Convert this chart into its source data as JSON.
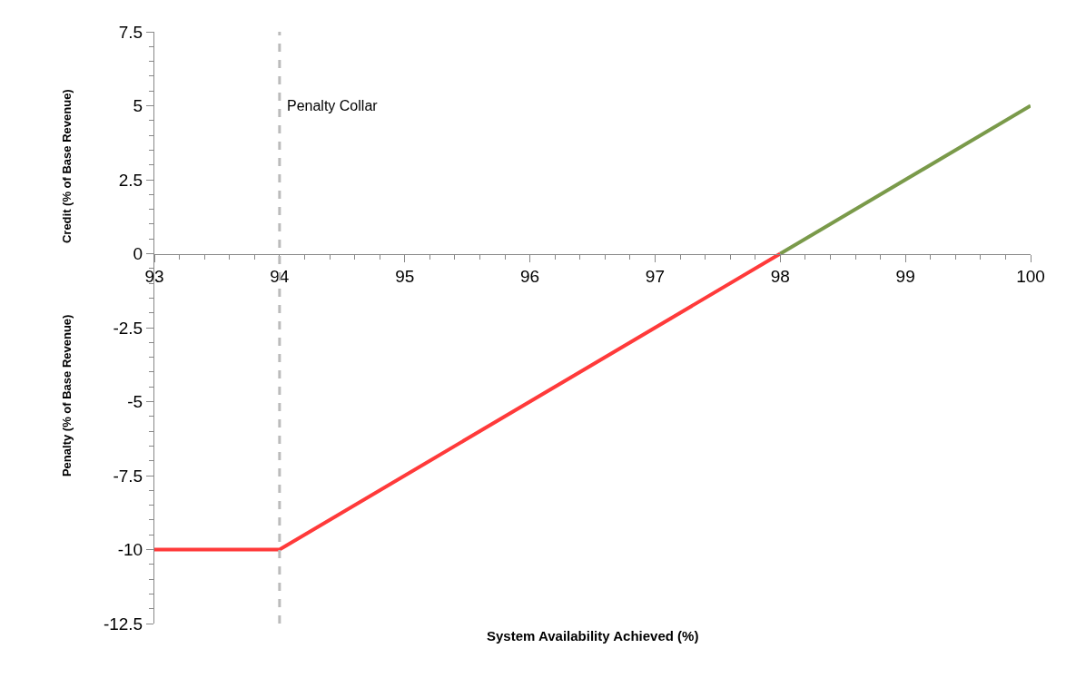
{
  "chart_data": {
    "type": "line",
    "xlabel": "System Availability Achieved (%)",
    "ylabel": "Penalty (% of Base Revenue)",
    "annotations": [
      "Credit (% of Base Revenue)"
    ],
    "series": [
      {
        "color": "#ff3a3a",
        "x": [
          93,
          94,
          98
        ],
        "values": [
          -10,
          -10,
          0
        ]
      },
      {
        "color": "#7a9a4a",
        "x": [
          98,
          100
        ],
        "values": [
          0,
          5
        ]
      }
    ],
    "xlim": [
      93,
      100
    ],
    "xticks": [
      93,
      94,
      95,
      96,
      97,
      98,
      99,
      100
    ],
    "ylim": [
      -12.5,
      7.5
    ],
    "yticks": [
      {
        "value": 7.5,
        "label": "7.5"
      },
      5,
      {
        "value": 2.5,
        "label": "2.5"
      },
      0,
      {
        "value": -2.5,
        "label": "-2.5"
      },
      -5,
      {
        "value": -7.5,
        "label": "-7.5"
      },
      -10,
      {
        "value": -12.5,
        "label": "-12.5"
      }
    ],
    "ref_lines": [
      {
        "axis": "x",
        "value": 94,
        "label": "Penalty Collar",
        "color": "#bbbbbb",
        "line_style": "dashed"
      }
    ],
    "marker": "none",
    "line_style": "solid"
  }
}
